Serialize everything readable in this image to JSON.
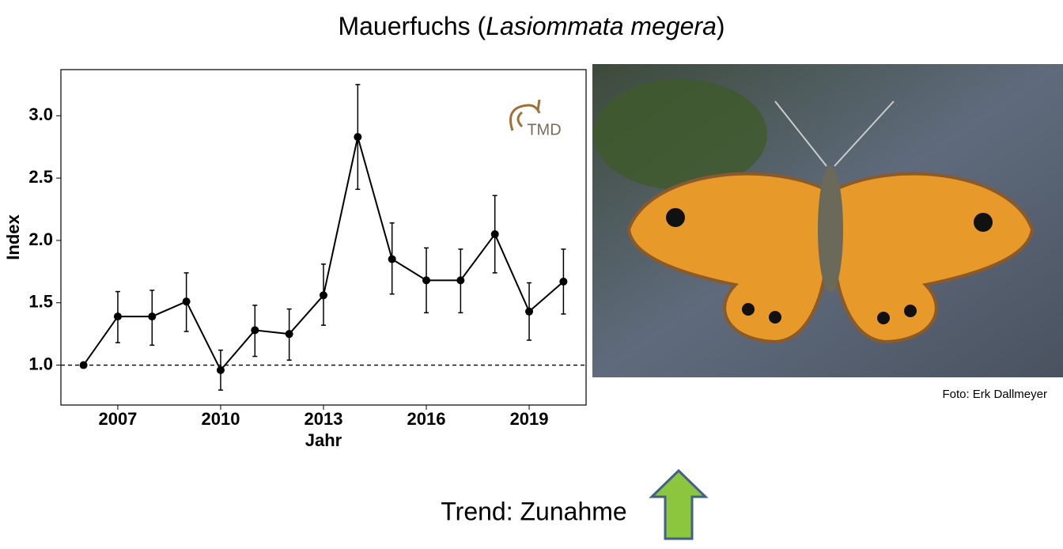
{
  "title_parts": [
    "Mauerfuchs (",
    "Lasiommata megera",
    ")"
  ],
  "chart_data": {
    "type": "line",
    "x": [
      2006,
      2007,
      2008,
      2009,
      2010,
      2011,
      2012,
      2013,
      2014,
      2015,
      2016,
      2017,
      2018,
      2019,
      2020
    ],
    "values": [
      1.0,
      1.39,
      1.39,
      1.51,
      0.96,
      1.28,
      1.25,
      1.56,
      2.83,
      1.85,
      1.68,
      1.68,
      2.05,
      1.43,
      1.67
    ],
    "upper": [
      1.0,
      1.59,
      1.6,
      1.74,
      1.12,
      1.48,
      1.45,
      1.81,
      3.25,
      2.14,
      1.94,
      1.93,
      2.36,
      1.66,
      1.93
    ],
    "lower": [
      1.0,
      1.18,
      1.16,
      1.27,
      0.8,
      1.07,
      1.04,
      1.32,
      2.41,
      1.57,
      1.42,
      1.42,
      1.74,
      1.2,
      1.41
    ],
    "color": "#000000",
    "xlabel": "Jahr",
    "ylabel": "Index",
    "xlim": [
      2005.34,
      2020.66
    ],
    "xticks": [
      2007,
      2010,
      2013,
      2016,
      2019
    ],
    "ylim": [
      0.68,
      3.37
    ],
    "yticks": [
      {
        "value": 1,
        "label": "1.0"
      },
      {
        "value": 1.5,
        "label": "1.5"
      },
      {
        "value": 2,
        "label": "2.0"
      },
      {
        "value": 2.5,
        "label": "2.5"
      },
      {
        "value": 3,
        "label": "3.0"
      }
    ],
    "hline": 1,
    "grid": false
  },
  "logo": "TMD",
  "photo_credit": "Foto: Erk Dallmeyer",
  "trend": "Trend: Zunahme"
}
